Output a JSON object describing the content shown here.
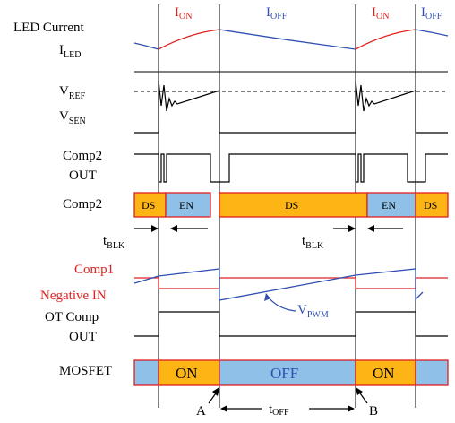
{
  "signals": {
    "led_current": "LED Current",
    "i_led_main": "I",
    "i_led_sub": "LED",
    "v_ref_main": "V",
    "v_ref_sub": "REF",
    "v_sen_main": "V",
    "v_sen_sub": "SEN",
    "comp2_out_1": "Comp2",
    "comp2_out_2": "OUT",
    "comp2": "Comp2",
    "comp1": "Comp1",
    "negative_in": "Negative IN",
    "ot_comp_1": "OT Comp",
    "ot_comp_2": "OUT",
    "mosfet": "MOSFET"
  },
  "phases": {
    "i_main": "I",
    "on_sub": "ON",
    "off_sub": "OFF"
  },
  "comp2_states": [
    "DS",
    "EN",
    "DS",
    "EN",
    "DS"
  ],
  "mosfet_states": [
    "ON",
    "OFF",
    "ON"
  ],
  "annotations": {
    "t_main": "t",
    "blk_sub": "BLK",
    "off_sub": "OFF",
    "v_main": "V",
    "pwm_sub": "PWM",
    "point_a": "A",
    "point_b": "B"
  },
  "colors": {
    "on_orange": "#fdb515",
    "off_blue": "#8ec0e8",
    "border_red": "#e02020",
    "trace_blue": "#3050b0",
    "trace_red": "#e02020"
  }
}
